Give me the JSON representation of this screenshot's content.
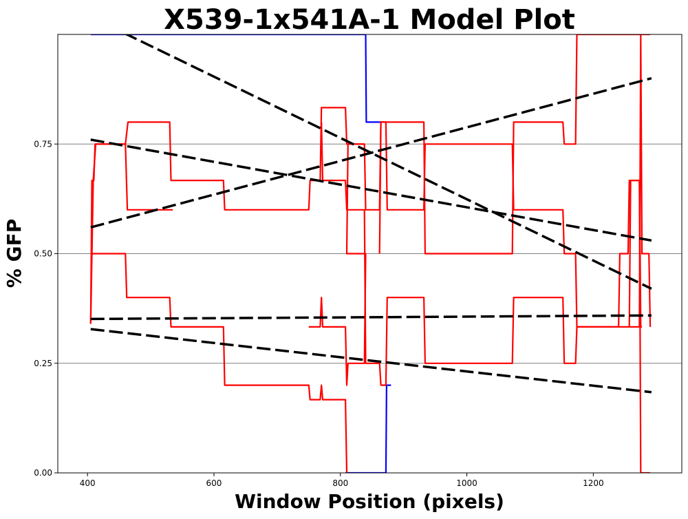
{
  "chart_data": {
    "type": "line",
    "title": "X539-1x541A-1 Model Plot",
    "xlabel": "Window Position (pixels)",
    "ylabel": "% GFP",
    "xlim": [
      353,
      1340
    ],
    "ylim": [
      0,
      1.0
    ],
    "xticks": [
      400,
      600,
      800,
      1000,
      1200
    ],
    "xtick_labels": [
      "400",
      "600",
      "800",
      "1000",
      "1200"
    ],
    "yticks": [
      0,
      0.25,
      0.5,
      0.75
    ],
    "ytick_labels": [
      "0.00",
      "0.25",
      "0.50",
      "0.75"
    ],
    "grid": "horizontal at y ticks",
    "legend": "none",
    "colors": {
      "blue": "#0000ff",
      "red": "#ff0000",
      "black": "#000000",
      "grid": "#808080"
    },
    "series": [
      {
        "color": "blue",
        "style": "solid",
        "points": [
          [
            405,
            1.0
          ],
          [
            840,
            1.0
          ],
          [
            841,
            0.8
          ],
          [
            870,
            0.8
          ]
        ]
      },
      {
        "color": "blue",
        "style": "solid",
        "points": [
          [
            808,
            0.0
          ],
          [
            872,
            0.0
          ],
          [
            873,
            0.2
          ],
          [
            880,
            0.2
          ]
        ]
      },
      {
        "color": "red",
        "style": "solid",
        "points": [
          [
            405,
            0.34
          ],
          [
            407,
            0.667
          ],
          [
            410,
            0.667
          ],
          [
            412,
            0.75
          ],
          [
            418,
            0.75
          ],
          [
            460,
            0.75
          ],
          [
            464,
            0.8
          ],
          [
            530,
            0.8
          ],
          [
            532,
            0.667
          ],
          [
            615,
            0.667
          ],
          [
            617,
            0.6
          ],
          [
            750,
            0.6
          ],
          [
            752,
            0.667
          ],
          [
            768,
            0.667
          ],
          [
            770,
            0.833
          ],
          [
            808,
            0.833
          ],
          [
            810,
            0.75
          ],
          [
            838,
            0.75
          ],
          [
            840,
            0.6
          ],
          [
            862,
            0.6
          ],
          [
            864,
            0.8
          ],
          [
            872,
            0.8
          ],
          [
            874,
            0.6
          ],
          [
            932,
            0.6
          ],
          [
            934,
            0.75
          ],
          [
            1072,
            0.75
          ],
          [
            1074,
            0.6
          ],
          [
            1152,
            0.6
          ],
          [
            1154,
            0.5
          ],
          [
            1172,
            0.5
          ],
          [
            1174,
            0.333
          ],
          [
            1240,
            0.333
          ],
          [
            1242,
            0.5
          ],
          [
            1255,
            0.5
          ],
          [
            1257,
            0.667
          ],
          [
            1273,
            0.667
          ],
          [
            1275,
            0.0
          ],
          [
            1290,
            0.0
          ]
        ]
      },
      {
        "color": "red",
        "style": "solid",
        "points": [
          [
            405,
            0.5
          ],
          [
            410,
            0.5
          ],
          [
            412,
            0.5
          ],
          [
            460,
            0.5
          ],
          [
            462,
            0.4
          ],
          [
            530,
            0.4
          ],
          [
            532,
            0.333
          ],
          [
            615,
            0.333
          ],
          [
            617,
            0.2
          ],
          [
            750,
            0.2
          ],
          [
            752,
            0.167
          ],
          [
            768,
            0.167
          ],
          [
            770,
            0.2
          ],
          [
            772,
            0.167
          ],
          [
            808,
            0.167
          ],
          [
            810,
            0.0
          ]
        ]
      },
      {
        "color": "red",
        "style": "solid",
        "points": [
          [
            405,
            0.34
          ],
          [
            409,
            0.667
          ],
          [
            413,
            0.75
          ],
          [
            460,
            0.75
          ],
          [
            463,
            0.6
          ],
          [
            530,
            0.6
          ],
          [
            532,
            0.6
          ],
          [
            535,
            0.6
          ]
        ]
      },
      {
        "color": "red",
        "style": "solid",
        "points": [
          [
            750,
            0.333
          ],
          [
            768,
            0.333
          ],
          [
            770,
            0.4
          ],
          [
            772,
            0.333
          ],
          [
            808,
            0.333
          ],
          [
            810,
            0.2
          ],
          [
            812,
            0.25
          ],
          [
            838,
            0.25
          ],
          [
            840,
            0.5
          ],
          [
            810,
            0.5
          ],
          [
            812,
            0.75
          ],
          [
            838,
            0.75
          ]
        ]
      },
      {
        "color": "red",
        "style": "solid",
        "points": [
          [
            770,
            0.8
          ],
          [
            772,
            0.667
          ],
          [
            808,
            0.667
          ],
          [
            810,
            0.6
          ],
          [
            838,
            0.6
          ],
          [
            840,
            0.25
          ],
          [
            862,
            0.25
          ],
          [
            864,
            0.2
          ],
          [
            872,
            0.2
          ],
          [
            874,
            0.4
          ],
          [
            932,
            0.4
          ],
          [
            934,
            0.25
          ],
          [
            1072,
            0.25
          ],
          [
            1074,
            0.4
          ],
          [
            1152,
            0.4
          ],
          [
            1154,
            0.25
          ],
          [
            1172,
            0.25
          ],
          [
            1174,
            0.333
          ],
          [
            1240,
            0.333
          ],
          [
            1242,
            0.333
          ],
          [
            1255,
            0.333
          ],
          [
            1257,
            0.333
          ],
          [
            1273,
            0.333
          ],
          [
            1275,
            1.0
          ],
          [
            1277,
            0.5
          ],
          [
            1288,
            0.5
          ],
          [
            1290,
            0.333
          ]
        ]
      },
      {
        "color": "red",
        "style": "solid",
        "points": [
          [
            862,
            0.5
          ],
          [
            864,
            0.8
          ],
          [
            932,
            0.8
          ],
          [
            934,
            0.5
          ],
          [
            1072,
            0.5
          ],
          [
            1074,
            0.8
          ],
          [
            1152,
            0.8
          ],
          [
            1154,
            0.75
          ],
          [
            1172,
            0.75
          ],
          [
            1174,
            1.0
          ],
          [
            1240,
            1.0
          ],
          [
            1242,
            1.0
          ],
          [
            1255,
            1.0
          ],
          [
            1257,
            1.0
          ],
          [
            1273,
            1.0
          ],
          [
            1290,
            1.0
          ]
        ]
      },
      {
        "color": "red",
        "style": "solid",
        "points": [
          [
            1255,
            0.333
          ],
          [
            1257,
            0.333
          ],
          [
            1259,
            0.667
          ],
          [
            1273,
            0.667
          ],
          [
            1275,
            0.333
          ],
          [
            1277,
            0.333
          ]
        ]
      },
      {
        "color": "black",
        "style": "dashed",
        "points": [
          [
            405,
            1.04
          ],
          [
            1292,
            0.42
          ]
        ]
      },
      {
        "color": "black",
        "style": "dashed",
        "points": [
          [
            405,
            0.56
          ],
          [
            1292,
            0.9
          ]
        ]
      },
      {
        "color": "black",
        "style": "dashed",
        "points": [
          [
            405,
            0.76
          ],
          [
            1292,
            0.53
          ]
        ]
      },
      {
        "color": "black",
        "style": "dashed",
        "points": [
          [
            405,
            0.351
          ],
          [
            1292,
            0.359
          ]
        ]
      },
      {
        "color": "black",
        "style": "dashed",
        "points": [
          [
            405,
            0.328
          ],
          [
            1292,
            0.184
          ]
        ]
      }
    ]
  }
}
